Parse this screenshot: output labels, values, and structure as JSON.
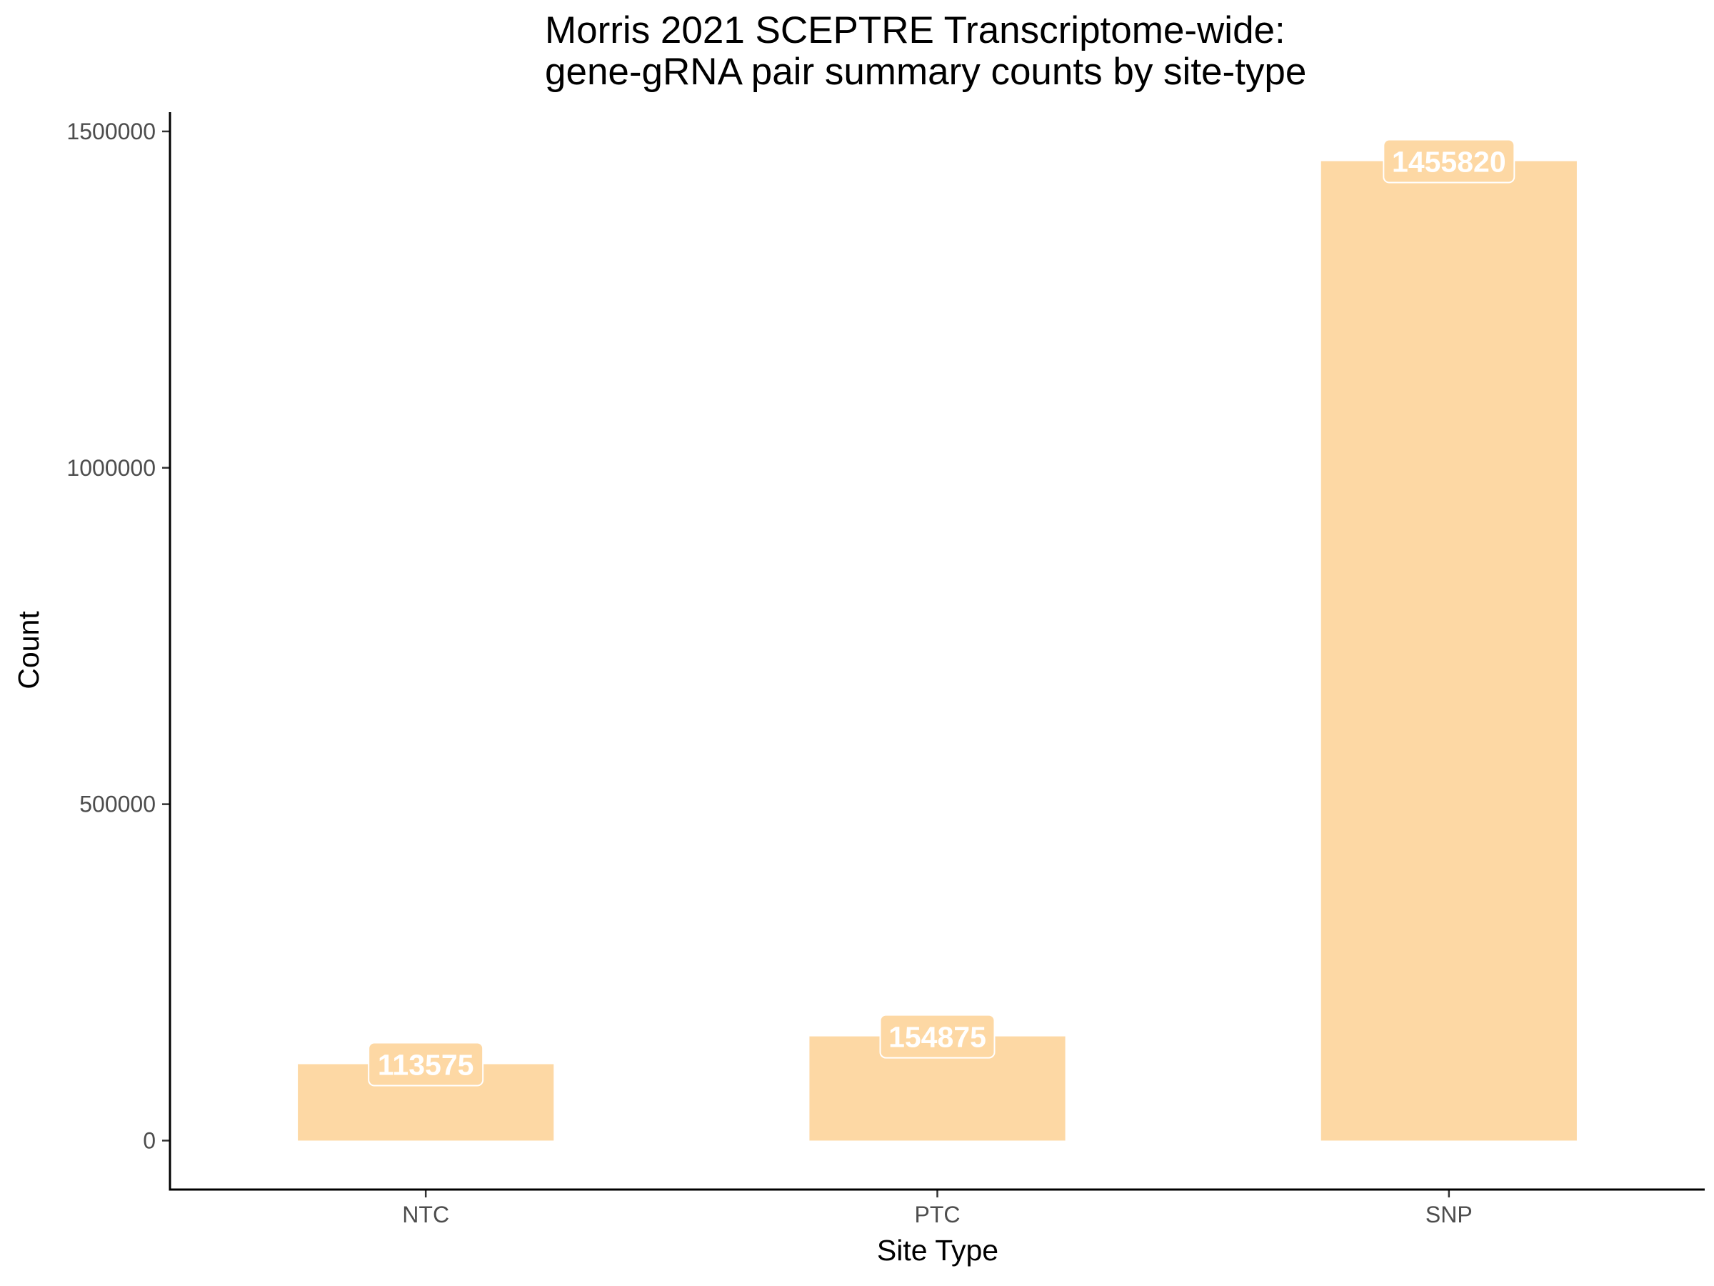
{
  "chart_data": {
    "type": "bar",
    "title_lines": [
      "Morris 2021 SCEPTRE Transcriptome-wide:",
      "gene-gRNA pair summary counts by site-type"
    ],
    "xlabel": "Site Type",
    "ylabel": "Count",
    "categories": [
      "NTC",
      "PTC",
      "SNP"
    ],
    "values": [
      113575,
      154875,
      1455820
    ],
    "value_labels": [
      "113575",
      "154875",
      "1455820"
    ],
    "yticks": [
      0,
      500000,
      1000000,
      1500000
    ],
    "ytick_labels": [
      "0",
      "500000",
      "1000000",
      "1500000"
    ],
    "ylim": [
      -72791,
      1528611
    ],
    "bar_color": "#fdd8a4",
    "grid": false,
    "legend": "none"
  }
}
